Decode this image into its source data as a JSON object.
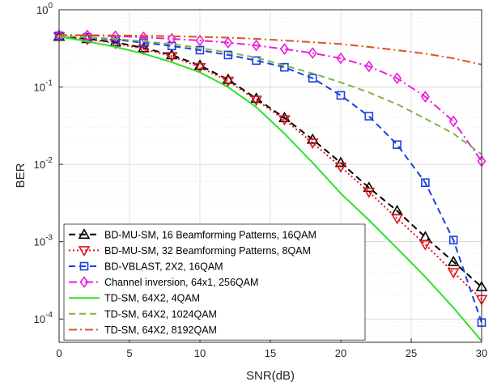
{
  "chart_data": {
    "type": "line",
    "xlabel": "SNR(dB)",
    "ylabel": "BER",
    "xlim": [
      0,
      30
    ],
    "ylim": [
      5e-05,
      1
    ],
    "yscale": "log",
    "grid": true,
    "legend_position": "bottom-left",
    "x_ticks": [
      "0",
      "5",
      "10",
      "15",
      "20",
      "25",
      "30"
    ],
    "y_ticks": [
      {
        "base": "10",
        "exp": "0"
      },
      {
        "base": "10",
        "exp": "-1"
      },
      {
        "base": "10",
        "exp": "-2"
      },
      {
        "base": "10",
        "exp": "-3"
      },
      {
        "base": "10",
        "exp": "-4"
      }
    ],
    "series": [
      {
        "name": "BD-MU-SM, 16 Beamforming Patterns, 16QAM",
        "color": "#000000",
        "dash": "8,5",
        "marker": "triangle-up",
        "x": [
          0,
          2,
          4,
          6,
          8,
          10,
          12,
          14,
          16,
          18,
          20,
          22,
          24,
          26,
          28,
          30
        ],
        "y": [
          0.45,
          0.42,
          0.38,
          0.32,
          0.26,
          0.19,
          0.125,
          0.071,
          0.04,
          0.021,
          0.0105,
          0.005,
          0.0025,
          0.00115,
          0.00055,
          0.00026
        ]
      },
      {
        "name": "BD-MU-SM, 32 Beamforming Patterns, 8QAM",
        "color": "#e0161d",
        "dash": "2,3",
        "marker": "triangle-down",
        "x": [
          0,
          2,
          4,
          6,
          8,
          10,
          12,
          14,
          16,
          18,
          20,
          22,
          24,
          26,
          28,
          30
        ],
        "y": [
          0.45,
          0.415,
          0.37,
          0.31,
          0.25,
          0.18,
          0.12,
          0.068,
          0.038,
          0.019,
          0.0093,
          0.0044,
          0.002,
          0.00092,
          0.0004,
          0.00018
        ]
      },
      {
        "name": "BD-VBLAST, 2X2, 16QAM",
        "color": "#1b3fe0",
        "dash": "8,5",
        "marker": "square",
        "x": [
          0,
          2,
          4,
          6,
          8,
          10,
          12,
          14,
          16,
          18,
          20,
          22,
          24,
          26,
          28,
          30
        ],
        "y": [
          0.46,
          0.44,
          0.41,
          0.375,
          0.34,
          0.3,
          0.26,
          0.22,
          0.18,
          0.13,
          0.078,
          0.042,
          0.018,
          0.0058,
          0.00105,
          9e-05
        ]
      },
      {
        "name": "Channel inversion, 64x1, 256QAM",
        "color": "#ee1bdd",
        "dash": "10,4,2,4",
        "marker": "diamond",
        "x": [
          0,
          2,
          4,
          6,
          8,
          10,
          12,
          14,
          16,
          18,
          20,
          22,
          24,
          26,
          28,
          30
        ],
        "y": [
          0.47,
          0.465,
          0.455,
          0.44,
          0.42,
          0.4,
          0.375,
          0.345,
          0.31,
          0.275,
          0.235,
          0.185,
          0.13,
          0.075,
          0.036,
          0.011
        ]
      },
      {
        "name": "TD-SM, 64X2, 4QAM",
        "color": "#2fe12a",
        "dash": "",
        "marker": "none",
        "x": [
          0,
          2,
          4,
          6,
          8,
          10,
          12,
          14,
          16,
          18,
          20,
          22,
          24,
          26,
          28,
          30
        ],
        "y": [
          0.45,
          0.39,
          0.33,
          0.27,
          0.21,
          0.155,
          0.1,
          0.055,
          0.025,
          0.0105,
          0.0042,
          0.0019,
          0.00082,
          0.00035,
          0.00014,
          5.2e-05
        ]
      },
      {
        "name": "TD-SM, 64X2, 1024QAM",
        "color": "#7db547",
        "dash": "8,5",
        "marker": "none",
        "x": [
          0,
          2,
          4,
          6,
          8,
          10,
          12,
          14,
          16,
          18,
          20,
          22,
          24,
          26,
          28,
          30
        ],
        "y": [
          0.46,
          0.44,
          0.42,
          0.39,
          0.36,
          0.32,
          0.28,
          0.24,
          0.19,
          0.15,
          0.115,
          0.085,
          0.06,
          0.039,
          0.025,
          0.0135
        ]
      },
      {
        "name": "TD-SM, 64X2, 8192QAM",
        "color": "#d9541d",
        "dash": "10,4,2,4",
        "marker": "none",
        "x": [
          0,
          2,
          4,
          6,
          8,
          10,
          12,
          14,
          16,
          18,
          20,
          22,
          24,
          26,
          28,
          30
        ],
        "y": [
          0.47,
          0.468,
          0.465,
          0.46,
          0.455,
          0.445,
          0.435,
          0.42,
          0.4,
          0.38,
          0.36,
          0.33,
          0.3,
          0.27,
          0.235,
          0.195
        ]
      }
    ]
  }
}
